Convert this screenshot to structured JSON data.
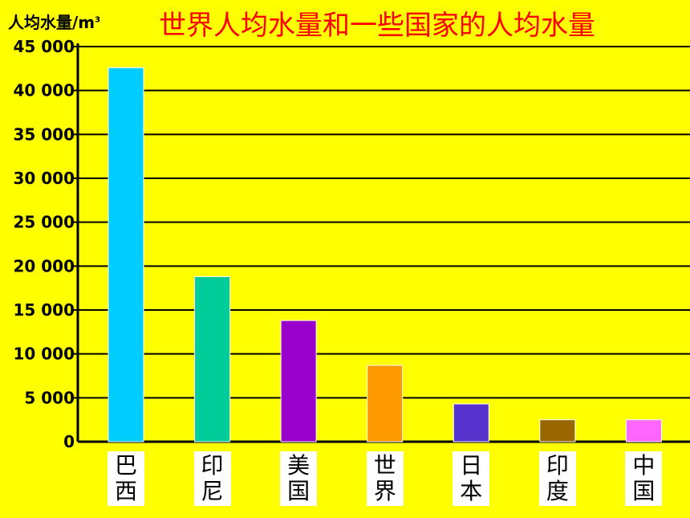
{
  "chart_data": {
    "type": "bar",
    "title": "世界人均水量和一些国家的人均水量",
    "ylabel": "人均水量/m",
    "ylabel_sup": "3",
    "xlabel": "",
    "categories": [
      "巴西",
      "印尼",
      "美国",
      "世界",
      "日本",
      "印度",
      "中国"
    ],
    "values": [
      42600,
      18800,
      13800,
      8700,
      4300,
      2500,
      2500
    ],
    "colors": [
      "#00CCFF",
      "#00CC99",
      "#9900CC",
      "#FF9900",
      "#5533CC",
      "#996600",
      "#FF66FF"
    ],
    "ylim": [
      0,
      45000
    ],
    "yticks": [
      0,
      5000,
      10000,
      15000,
      20000,
      25000,
      30000,
      35000,
      40000,
      45000
    ],
    "ytick_labels": [
      "0",
      "5 000",
      "10 000",
      "15 000",
      "20 000",
      "25 000",
      "30 000",
      "35 000",
      "40 000",
      "45 000"
    ],
    "grid": true
  }
}
